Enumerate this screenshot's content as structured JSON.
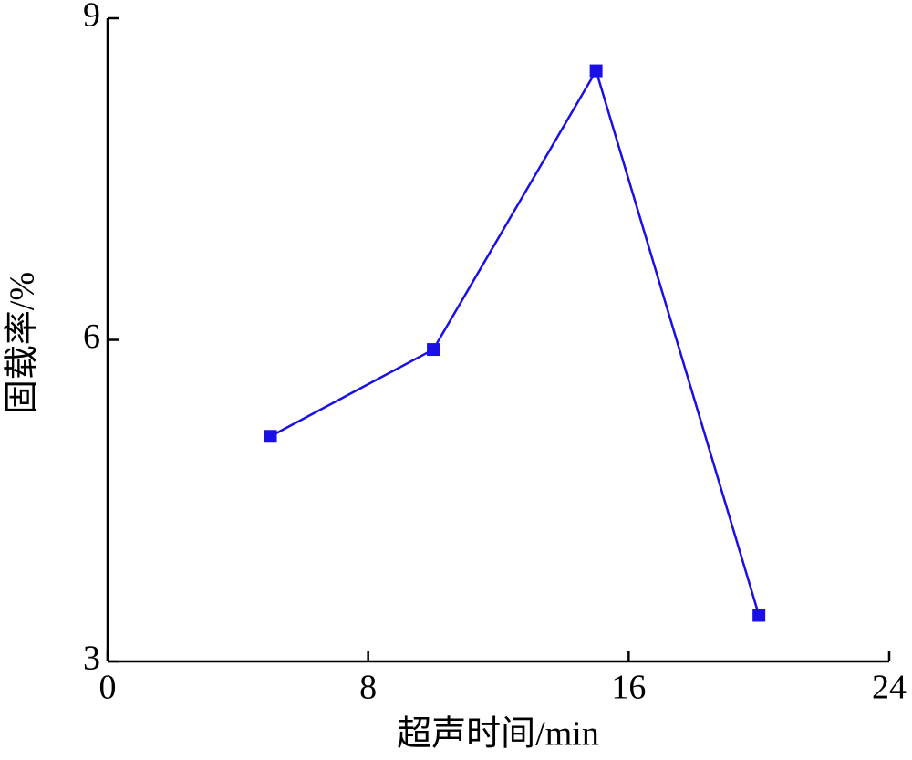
{
  "chart_data": {
    "type": "line",
    "x_label": "超声时间/min",
    "y_label": "固载率/%",
    "x": [
      5,
      10,
      15,
      20
    ],
    "series": [
      {
        "name": null,
        "color": "#1a10e6",
        "values": [
          5.1,
          5.91,
          8.51,
          3.43
        ]
      }
    ],
    "xlim": [
      0,
      24
    ],
    "xticks": [
      0,
      8,
      16,
      24
    ],
    "ylim": [
      3,
      9
    ],
    "yticks": [
      3,
      6,
      9
    ]
  }
}
